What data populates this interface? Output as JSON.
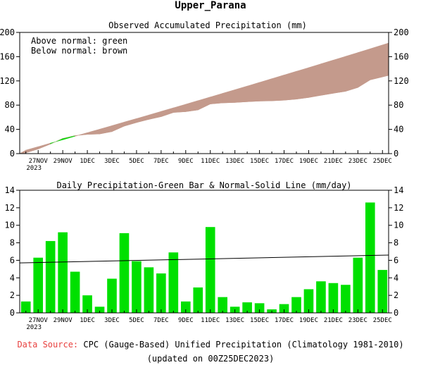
{
  "title": "Upper_Parana",
  "footer": {
    "source_label": "Data Source:",
    "source_text": "CPC (Gauge-Based) Unified Precipitation (Climatology 1981-2010)",
    "updated": "(updated on 00Z25DEC2023)"
  },
  "colors": {
    "above_normal": "#00dd00",
    "below_normal": "#c49a8c",
    "bar": "#00e000",
    "line": "#000000",
    "source_label": "#e8413f"
  },
  "chart_data": [
    {
      "type": "area",
      "title": "Observed Accumulated Precipitation (mm)",
      "legend": [
        "Above normal: green",
        "Below normal: brown"
      ],
      "legend_position": "top-left",
      "ylim": [
        0,
        200
      ],
      "yticks": [
        0,
        40,
        80,
        120,
        160,
        200
      ],
      "x_ticks": [
        {
          "day": 2,
          "label": "27NOV",
          "sub": "2023"
        },
        {
          "day": 4,
          "label": "29NOV"
        },
        {
          "day": 6,
          "label": "1DEC"
        },
        {
          "day": 8,
          "label": "3DEC"
        },
        {
          "day": 10,
          "label": "5DEC"
        },
        {
          "day": 12,
          "label": "7DEC"
        },
        {
          "day": 14,
          "label": "9DEC"
        },
        {
          "day": 16,
          "label": "11DEC"
        },
        {
          "day": 18,
          "label": "13DEC"
        },
        {
          "day": 20,
          "label": "15DEC"
        },
        {
          "day": 22,
          "label": "17DEC"
        },
        {
          "day": 24,
          "label": "19DEC"
        },
        {
          "day": 26,
          "label": "21DEC"
        },
        {
          "day": 28,
          "label": "23DEC"
        },
        {
          "day": 30,
          "label": "25DEC"
        }
      ],
      "series": [
        {
          "name": "Observed",
          "values": [
            1.3,
            7.6,
            15.8,
            25.0,
            29.7,
            31.7,
            32.4,
            36.3,
            45.4,
            51.3,
            56.5,
            61.0,
            67.9,
            69.2,
            72.1,
            81.9,
            83.7,
            84.4,
            85.6,
            86.7,
            87.1,
            88.1,
            89.9,
            92.6,
            96.2,
            99.6,
            102.8,
            109.1,
            121.7,
            126.6
          ]
        },
        {
          "name": "Normal",
          "values": [
            5.7,
            11.4,
            17.2,
            22.9,
            28.7,
            34.5,
            40.3,
            46.1,
            52.0,
            57.8,
            63.7,
            69.6,
            75.5,
            81.4,
            87.4,
            93.4,
            99.4,
            105.4,
            111.4,
            117.5,
            123.6,
            129.7,
            135.8,
            141.9,
            148.1,
            154.3,
            160.5,
            166.7,
            173.0,
            179.3
          ]
        }
      ]
    },
    {
      "type": "bar",
      "title": "Daily Precipitation-Green Bar & Normal-Solid Line (mm/day)",
      "ylim": [
        0,
        14
      ],
      "yticks": [
        0,
        2,
        4,
        6,
        8,
        10,
        12,
        14
      ],
      "x_ticks": [
        {
          "day": 2,
          "label": "27NOV",
          "sub": "2023"
        },
        {
          "day": 4,
          "label": "29NOV"
        },
        {
          "day": 6,
          "label": "1DEC"
        },
        {
          "day": 8,
          "label": "3DEC"
        },
        {
          "day": 10,
          "label": "5DEC"
        },
        {
          "day": 12,
          "label": "7DEC"
        },
        {
          "day": 14,
          "label": "9DEC"
        },
        {
          "day": 16,
          "label": "11DEC"
        },
        {
          "day": 18,
          "label": "13DEC"
        },
        {
          "day": 20,
          "label": "15DEC"
        },
        {
          "day": 22,
          "label": "17DEC"
        },
        {
          "day": 24,
          "label": "19DEC"
        },
        {
          "day": 26,
          "label": "21DEC"
        },
        {
          "day": 28,
          "label": "23DEC"
        },
        {
          "day": 30,
          "label": "25DEC"
        }
      ],
      "series": [
        {
          "name": "Daily",
          "values": [
            1.3,
            6.3,
            8.2,
            9.2,
            4.7,
            2.0,
            0.7,
            3.9,
            9.1,
            5.9,
            5.2,
            4.5,
            6.9,
            1.3,
            2.9,
            9.8,
            1.8,
            0.7,
            1.2,
            1.1,
            0.4,
            1.0,
            1.8,
            2.7,
            3.6,
            3.4,
            3.2,
            6.3,
            12.6,
            4.9
          ]
        },
        {
          "name": "Normal",
          "values": [
            5.7,
            6.6
          ]
        }
      ]
    }
  ]
}
